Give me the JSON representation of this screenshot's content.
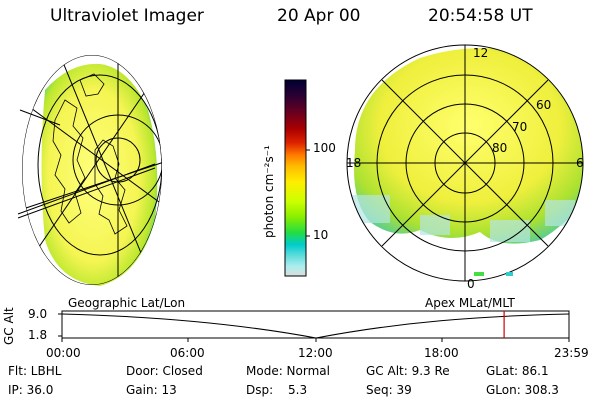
{
  "header": {
    "title": "Ultraviolet Imager",
    "date": "20 Apr 00",
    "time": "20:54:58 UT"
  },
  "left_panel": {
    "label": "Geographic Lat/Lon"
  },
  "right_panel": {
    "label": "Apex MLat/MLT",
    "mlt_labels": {
      "top": "12",
      "left": "18",
      "right": "6",
      "bottom": "0"
    },
    "lat_labels": [
      "60",
      "70",
      "80"
    ]
  },
  "colorbar": {
    "unit_label": "photon cm⁻²s⁻¹",
    "ticks": [
      "100",
      "10"
    ],
    "colors": [
      "#000033",
      "#2a0033",
      "#660022",
      "#aa0000",
      "#dd2200",
      "#ff7700",
      "#ffbb00",
      "#ffee00",
      "#ccff00",
      "#88ee00",
      "#22dd44",
      "#00cccc",
      "#66dddd",
      "#aaeeee",
      "#dddddd"
    ]
  },
  "timeline": {
    "axis_label": "GC Alt",
    "y_ticks": [
      "9.0",
      "1.8"
    ],
    "x_ticks": [
      "00:00",
      "06:00",
      "12:00",
      "18:00",
      "23:59"
    ],
    "current_fraction": 0.872
  },
  "info": {
    "row1": [
      "Flt: LBHL",
      "Door: Closed",
      "Mode: Normal",
      "GC Alt: 9.3 Re",
      "GLat:  86.1"
    ],
    "row2": [
      "IP: 36.0",
      "Gain: 13",
      "Dsp:",
      "5.3",
      "Seq: 39",
      "GLon: 308.3"
    ]
  },
  "colors": {
    "marker": "#cc0000",
    "glow_green": "#9ee000",
    "glow_yellow": "#ffff66"
  }
}
